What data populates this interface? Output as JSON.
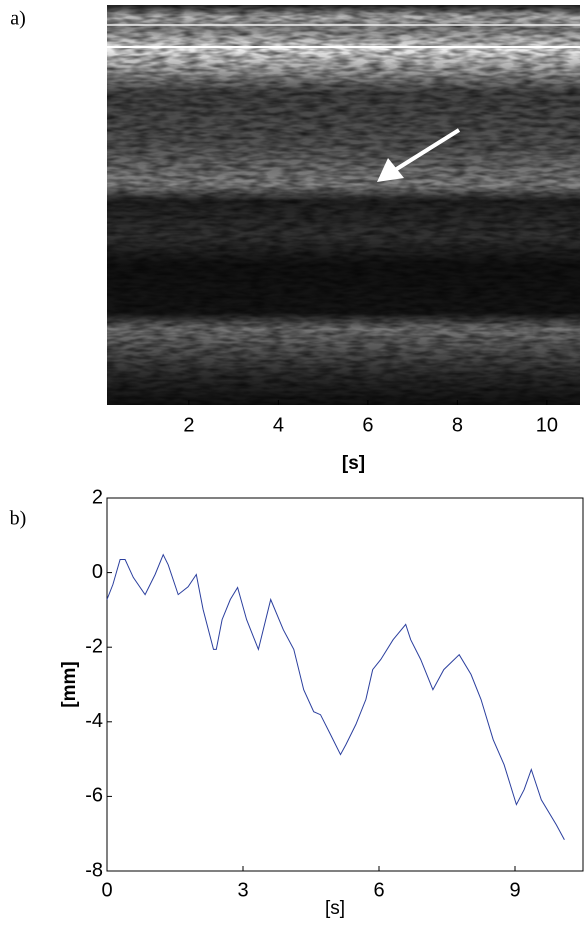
{
  "chart_data": [
    {
      "type": "image",
      "panel_label": "a)",
      "xlabel": "[s]",
      "xlim": [
        0.17,
        10.74
      ],
      "xticks": [
        2,
        4,
        6,
        8,
        10
      ]
    },
    {
      "type": "line",
      "panel_label": "b)",
      "xlabel": "[s]",
      "ylabel": "[mm]",
      "x": [
        0,
        0.13,
        0.29,
        0.4,
        0.58,
        0.84,
        1.06,
        1.24,
        1.35,
        1.57,
        1.79,
        1.97,
        2.12,
        2.35,
        2.41,
        2.54,
        2.72,
        2.88,
        3.08,
        3.34,
        3.61,
        3.89,
        4.12,
        4.34,
        4.56,
        4.71,
        4.93,
        5.15,
        5.27,
        5.49,
        5.71,
        5.86,
        6.04,
        6.31,
        6.59,
        6.7,
        6.92,
        7.19,
        7.43,
        7.77,
        8.03,
        8.25,
        8.52,
        8.76,
        9.03,
        9.2,
        9.36,
        9.58,
        9.91,
        10.09
      ],
      "series": [
        {
          "color": "#2b3f9e",
          "values": [
            -0.72,
            -0.32,
            0.35,
            0.35,
            -0.13,
            -0.59,
            -0.05,
            0.48,
            0.21,
            -0.59,
            -0.38,
            -0.05,
            -0.99,
            -2.06,
            -2.06,
            -1.26,
            -0.72,
            -0.4,
            -1.26,
            -2.06,
            -0.72,
            -1.53,
            -2.06,
            -3.14,
            -3.73,
            -3.81,
            -4.34,
            -4.88,
            -4.61,
            -4.07,
            -3.4,
            -2.6,
            -2.33,
            -1.8,
            -1.39,
            -1.8,
            -2.33,
            -3.14,
            -2.6,
            -2.2,
            -2.73,
            -3.4,
            -4.48,
            -5.15,
            -6.22,
            -5.82,
            -5.28,
            -6.09,
            -6.76,
            -7.16
          ]
        }
      ],
      "xlim": [
        0,
        10.5
      ],
      "ylim": [
        -8,
        2
      ],
      "xticks": [
        0,
        3,
        6,
        9
      ],
      "yticks": [
        -8,
        -6,
        -4,
        -2,
        0,
        2
      ]
    }
  ]
}
